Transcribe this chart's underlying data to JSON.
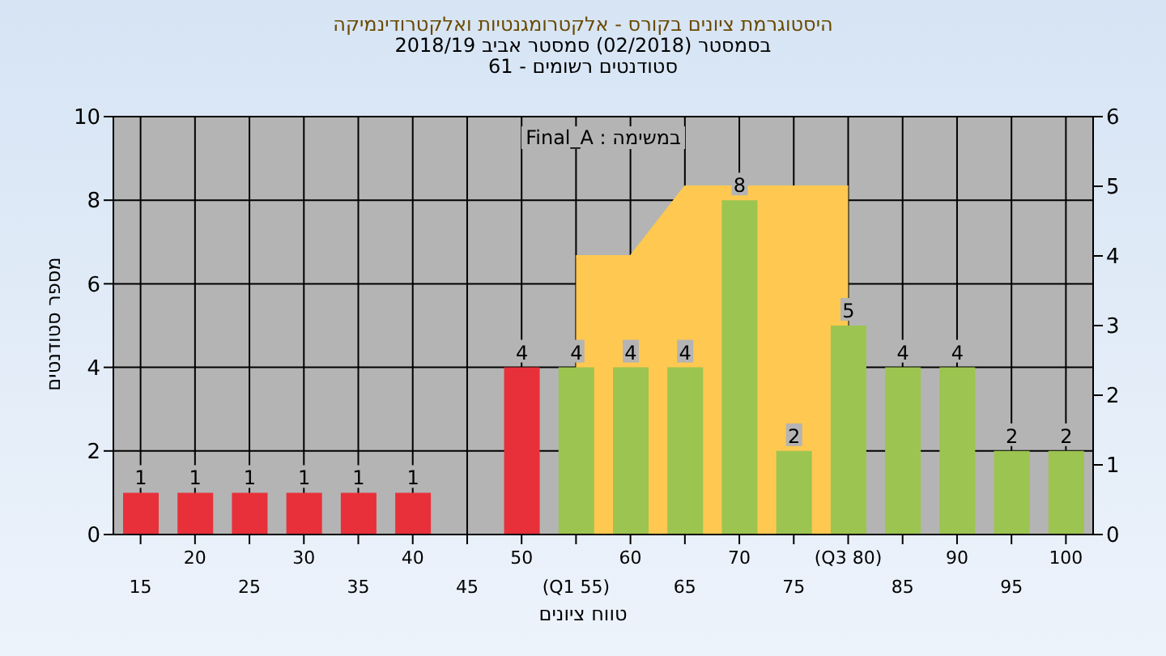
{
  "chart_data": {
    "type": "bar",
    "title": "היסטוגרמת ציונים בקורס - אלקטרומגנטיות ואלקטרודינמיקה",
    "subtitle": "בסמסטר (02/2018) סמסטר אביב 2018/19\nסטודנטים רשומים - 61",
    "xlabel": "טווח ציונים",
    "ylabel": "מספר סטודנטים",
    "annotations": [
      "במשימה : Final_A"
    ],
    "categories": [
      "15",
      "20",
      "25",
      "30",
      "35",
      "40",
      "45",
      "50",
      "(Q1 55)",
      "60",
      "65",
      "70",
      "75",
      "(Q3 80)",
      "85",
      "90",
      "95",
      "100"
    ],
    "series": [
      {
        "value_labels": [
          "1",
          "1",
          "1",
          "1",
          "1",
          "1",
          null,
          "4",
          "4",
          "4",
          "4",
          "8",
          "2",
          "5",
          "4",
          "4",
          "2",
          "2"
        ],
        "colors": [
          "#e8303a",
          "#e8303a",
          "#e8303a",
          "#e8303a",
          "#e8303a",
          "#e8303a",
          "#e8303a",
          "#e8303a",
          "#9cc450",
          "#9cc450",
          "#9cc450",
          "#9cc450",
          "#9cc450",
          "#9cc450",
          "#9cc450",
          "#9cc450",
          "#9cc450",
          "#9cc450"
        ],
        "values": [
          1,
          1,
          1,
          1,
          1,
          1,
          null,
          4,
          4,
          4,
          4,
          8,
          2,
          5,
          4,
          4,
          2,
          2
        ]
      },
      {
        "type": "area",
        "axis": "y2",
        "color": "#ffc850",
        "values": [
          null,
          null,
          null,
          null,
          null,
          null,
          null,
          null,
          4,
          4,
          5,
          5,
          5,
          5,
          null,
          null,
          null,
          null
        ]
      }
    ],
    "ylim": [
      0,
      10
    ],
    "yticks": [
      0,
      2,
      4,
      6,
      8,
      10
    ],
    "y2lim": [
      0,
      6
    ],
    "y2ticks": [
      0,
      1,
      2,
      3,
      4,
      5,
      6
    ],
    "grid": true
  }
}
